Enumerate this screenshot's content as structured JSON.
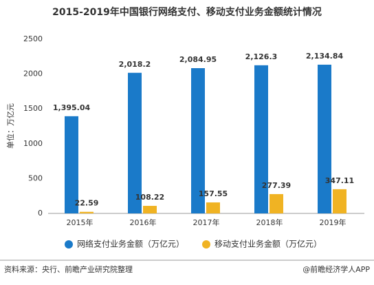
{
  "chart_data": {
    "type": "bar",
    "title": "2015-2019年中国银行网络支付、移动支付业务金额统计情况",
    "y_label": "单位：万亿元",
    "categories": [
      "2015年",
      "2016年",
      "2017年",
      "2018年",
      "2019年"
    ],
    "series": [
      {
        "name": "网络支付业务金额（万亿元）",
        "color": "#1a7ac9",
        "values": [
          1395.04,
          2018.2,
          2084.95,
          2126.3,
          2134.84
        ],
        "value_labels": [
          "1,395.04",
          "2,018.2",
          "2,084.95",
          "2,126.3",
          "2,134.84"
        ]
      },
      {
        "name": "移动支付业务金额（万亿元）",
        "color": "#f0b323",
        "values": [
          22.59,
          108.22,
          157.55,
          277.39,
          347.11
        ]
      }
    ],
    "ylim": [
      0,
      2500
    ],
    "yticks": [
      0,
      500,
      1000,
      1500,
      2000,
      2500
    ],
    "grid": false,
    "source": "资料来源：央行、前瞻产业研究院整理",
    "brand": "@前瞻经济学人APP"
  }
}
